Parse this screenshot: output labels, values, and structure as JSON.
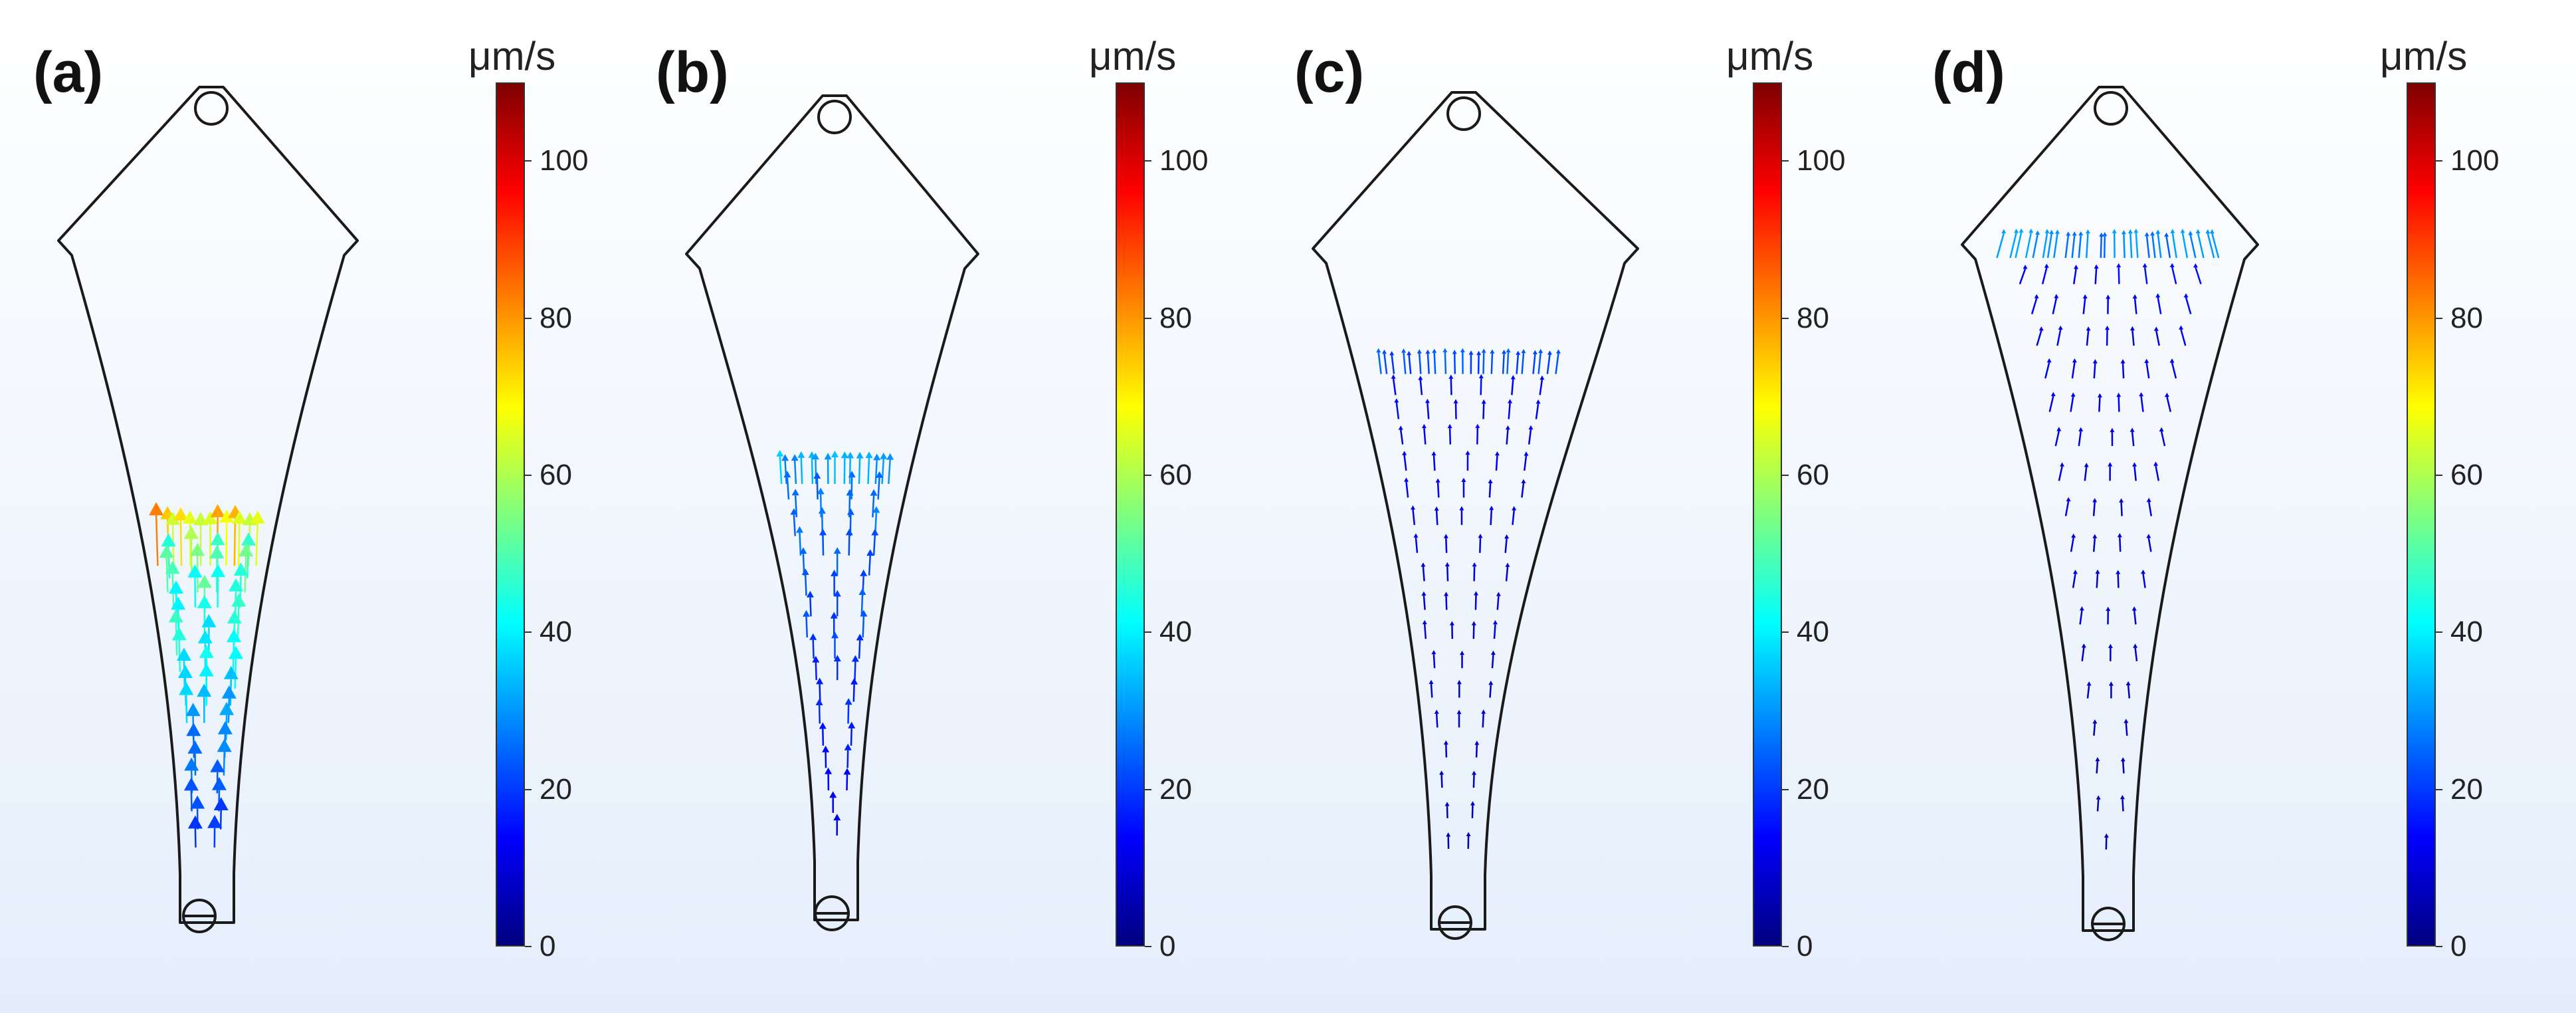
{
  "figure": {
    "background_gradient": [
      "#ffffff",
      "#e4eefb"
    ],
    "outline_color": "#1a1a1a",
    "colormap": [
      "#00007f",
      "#0000ff",
      "#007fff",
      "#00ffff",
      "#7fff7f",
      "#ffff00",
      "#ff7f00",
      "#ff0000",
      "#7f0000"
    ],
    "colorbar": {
      "unit": "μm/s",
      "range": [
        0,
        110
      ],
      "ticks": [
        "0",
        "20",
        "40",
        "60",
        "80",
        "100"
      ]
    },
    "panels": [
      {
        "label": "(a)",
        "description": "meniscus low in taper"
      },
      {
        "label": "(b)",
        "description": "meniscus mid taper"
      },
      {
        "label": "(c)",
        "description": "meniscus near shoulder"
      },
      {
        "label": "(d)",
        "description": "flow converging at top outlet"
      }
    ],
    "flow_fields": [
      {
        "front_level": 0.55,
        "front_speed": 72,
        "tip_speed": 18,
        "edge_speed": 55,
        "head_scale": 2.2
      },
      {
        "front_level": 0.4,
        "front_speed": 32,
        "tip_speed": 12,
        "edge_speed": 28,
        "head_scale": 1.1
      },
      {
        "front_level": 0.2,
        "front_speed": 22,
        "tip_speed": 6,
        "edge_speed": 14,
        "head_scale": 0.7
      },
      {
        "front_level": 0.0,
        "front_speed": 28,
        "tip_speed": 5,
        "edge_speed": 14,
        "head_scale": 0.7
      }
    ]
  }
}
